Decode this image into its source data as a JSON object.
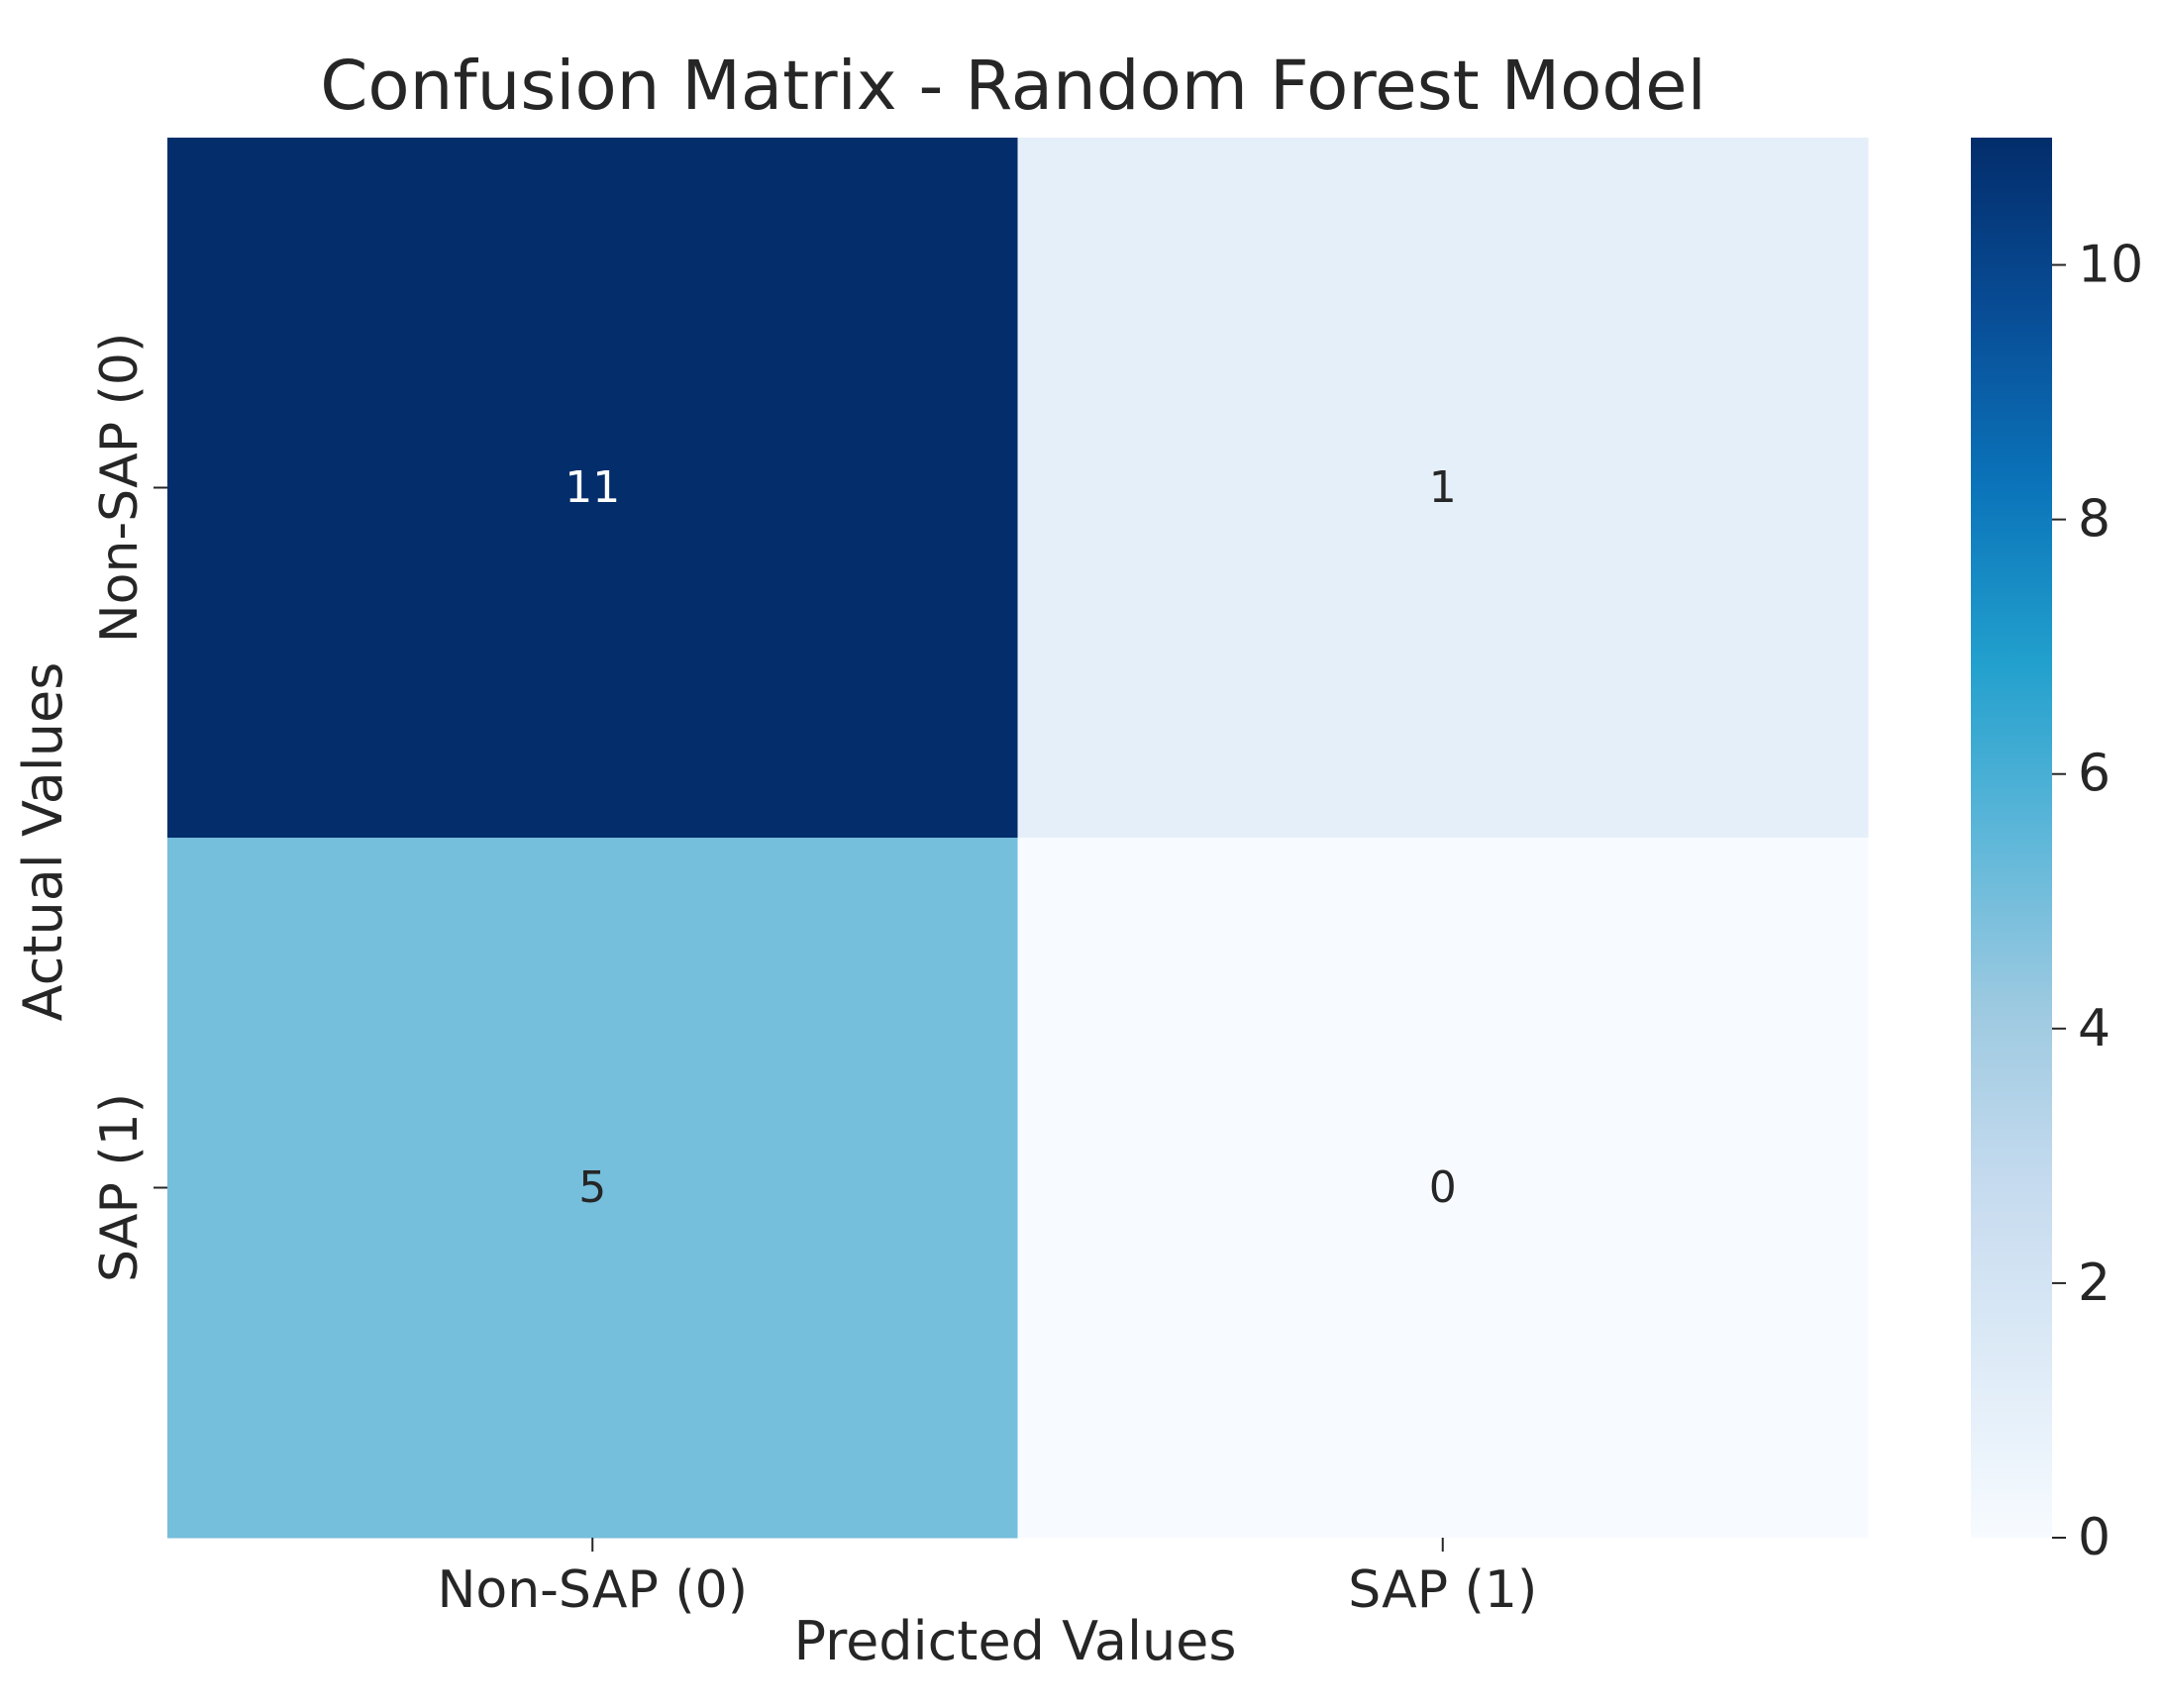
{
  "chart_data": {
    "type": "heatmap",
    "title": "Confusion Matrix - Random Forest Model",
    "xlabel": "Predicted Values",
    "ylabel": "Actual Values",
    "x_categories": [
      "Non-SAP (0)",
      "SAP (1)"
    ],
    "y_categories": [
      "Non-SAP (0)",
      "SAP (1)"
    ],
    "values": [
      [
        11,
        1
      ],
      [
        5,
        0
      ]
    ],
    "colorbar": {
      "range": [
        0,
        11
      ],
      "ticks": [
        "0",
        "2",
        "4",
        "6",
        "8",
        "10"
      ],
      "colormap": "Blues"
    },
    "colors": {
      "cmap_low": "#f7fbff",
      "cmap_high": "#08306b"
    }
  }
}
